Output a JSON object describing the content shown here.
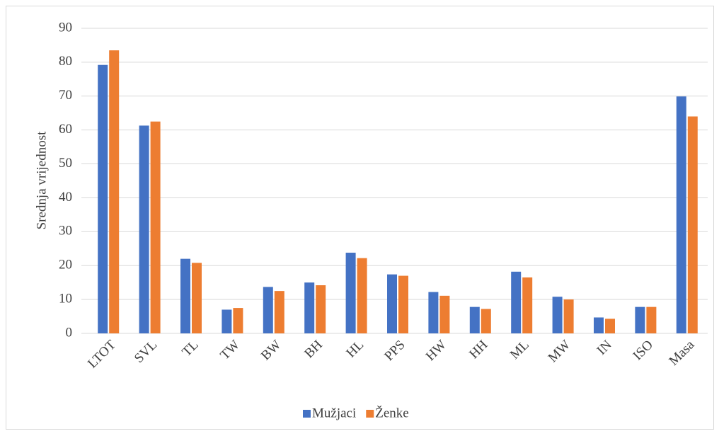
{
  "chart_data": {
    "type": "bar",
    "y_label": "Srednja vrijednost",
    "categories": [
      "LTOT",
      "SVL",
      "TL",
      "TW",
      "BW",
      "BH",
      "HL",
      "PPS",
      "HW",
      "HH",
      "ML",
      "MW",
      "IN",
      "ISO",
      "Masa"
    ],
    "series": [
      {
        "name": "Mužjaci",
        "color": "#4472c4",
        "values": [
          79.2,
          61.3,
          22,
          7,
          13.7,
          15,
          23.8,
          17.4,
          12.2,
          7.8,
          18.2,
          10.8,
          4.7,
          7.8,
          69.9
        ]
      },
      {
        "name": "Ženke",
        "color": "#ed7d31",
        "values": [
          83.5,
          62.5,
          20.8,
          7.5,
          12.5,
          14.2,
          22.2,
          17,
          11.1,
          7.2,
          16.5,
          10,
          4.3,
          7.8,
          64
        ]
      }
    ],
    "ylim": [
      0,
      90
    ],
    "yticks": [
      0,
      10,
      20,
      30,
      40,
      50,
      60,
      70,
      80,
      90
    ],
    "grid": true,
    "legend": "bottom"
  }
}
